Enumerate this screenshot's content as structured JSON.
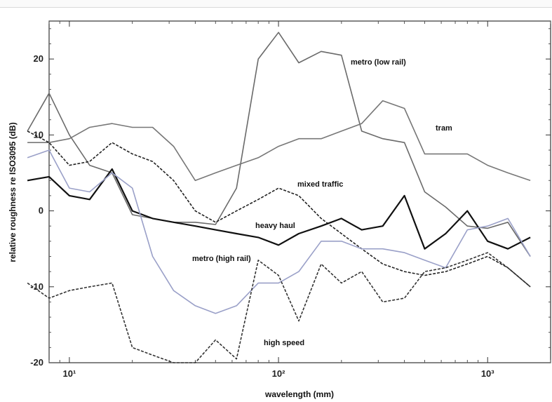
{
  "chart_data": {
    "type": "line",
    "xscale": "log",
    "xlim": [
      8,
      2000
    ],
    "ylim": [
      -20,
      25
    ],
    "xlabel": "wavelength (mm)",
    "ylabel": "relative roughness re ISO3095 (dB)",
    "yticks": [
      -20,
      -10,
      0,
      10,
      20
    ],
    "xticks": [
      {
        "value": 10,
        "label": "10¹"
      },
      {
        "value": 100,
        "label": "10²"
      },
      {
        "value": 1000,
        "label": "10³"
      }
    ],
    "x": [
      6.3,
      8,
      10,
      12.5,
      16,
      20,
      25,
      31.5,
      40,
      50,
      63,
      80,
      100,
      125,
      160,
      200,
      250,
      315,
      400,
      500,
      630,
      800,
      1000,
      1250,
      1600
    ],
    "series": [
      {
        "name": "metro (low rail)",
        "color": "#6a6a6a",
        "width": 1.6,
        "dash": "",
        "values": [
          10.5,
          15.5,
          10,
          6,
          5,
          -0.5,
          -1,
          -1.5,
          -1.5,
          -1.8,
          3,
          20,
          23.5,
          19.5,
          21,
          20.5,
          10.5,
          9.5,
          9,
          2.5,
          0.5,
          -2,
          -2.3,
          -1.5,
          -6
        ]
      },
      {
        "name": "tram",
        "color": "#777777",
        "width": 1.6,
        "dash": "",
        "values": [
          9,
          9,
          9.5,
          11,
          11.5,
          11,
          11,
          8.5,
          4,
          5,
          6,
          7,
          8.5,
          9.5,
          9.5,
          10.5,
          11.5,
          14.5,
          13.5,
          7.5,
          7.5,
          7.5,
          6,
          5,
          4
        ]
      },
      {
        "name": "mixed traffic",
        "color": "#222222",
        "width": 1.6,
        "dash": "4,2",
        "values": [
          10.5,
          9,
          6,
          6.5,
          9,
          7.5,
          6.5,
          4,
          0,
          -1.5,
          0,
          1.5,
          3,
          2,
          -1,
          -3,
          -5,
          -7,
          -8,
          -8.5,
          -8,
          -7,
          -6,
          -7.5,
          -10
        ]
      },
      {
        "name": "heavy haul",
        "color": "#111111",
        "width": 2.2,
        "dash": "",
        "values": [
          4,
          4.5,
          2,
          1.5,
          5.5,
          0,
          -1,
          -1.5,
          -2,
          -2.5,
          -3,
          -3.5,
          -4.5,
          -3,
          -2,
          -1,
          -2.5,
          -2,
          2,
          -5,
          -3,
          0,
          -4,
          -5,
          -3.5
        ]
      },
      {
        "name": "metro (high rail)",
        "color": "#9aa0c8",
        "width": 1.6,
        "dash": "",
        "values": [
          7,
          8,
          3,
          2.5,
          5,
          3,
          -6,
          -10.5,
          -12.5,
          -13.5,
          -12.5,
          -9.5,
          -9.5,
          -8,
          -4,
          -4,
          -5,
          -5,
          -5.5,
          -6.5,
          -7.5,
          -2.5,
          -2,
          -1,
          -6
        ]
      },
      {
        "name": "high speed",
        "color": "#333333",
        "width": 1.6,
        "dash": "4,2",
        "values": [
          -9.5,
          -11.5,
          -10.5,
          -10,
          -9.5,
          -18,
          -19,
          -20,
          -20,
          -17,
          -19.5,
          -6.5,
          -8.5,
          -14.5,
          -7,
          -9.5,
          -8,
          -12,
          -11.5,
          -8,
          -7.5,
          -6.5,
          -5.5,
          -7.5,
          -10
        ]
      }
    ],
    "annotations": [
      "metro (low rail)",
      "tram",
      "mixed traffic",
      "heavy haul",
      "metro (high rail)",
      "high speed"
    ]
  }
}
